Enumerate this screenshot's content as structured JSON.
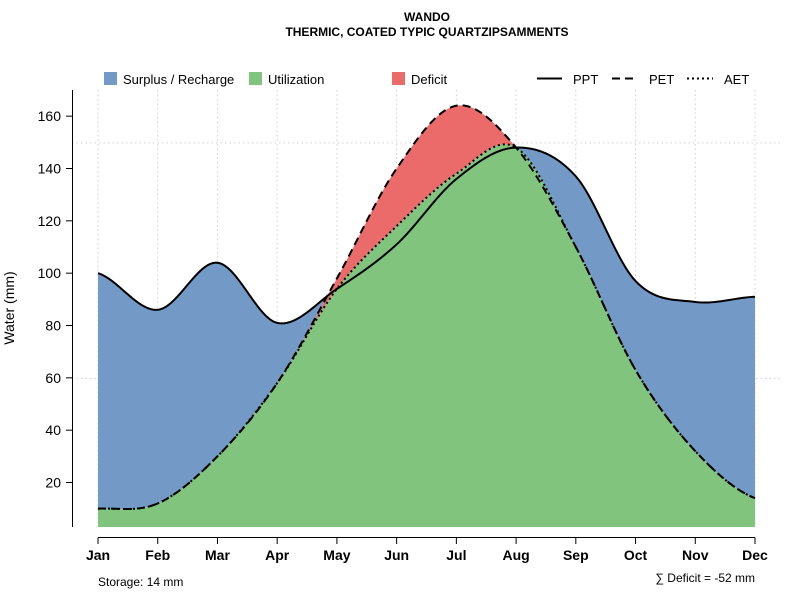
{
  "chart_data": {
    "type": "area",
    "title": "WANDO",
    "subtitle": "THERMIC, COATED TYPIC QUARTZIPSAMMENTS",
    "xlabel": "",
    "ylabel": "Water (mm)",
    "ylim": [
      3,
      170
    ],
    "y_ticks": [
      20,
      40,
      60,
      80,
      100,
      120,
      140,
      160
    ],
    "categories": [
      "Jan",
      "Feb",
      "Mar",
      "Apr",
      "May",
      "Jun",
      "Jul",
      "Aug",
      "Sep",
      "Oct",
      "Nov",
      "Dec"
    ],
    "series": [
      {
        "name": "PPT",
        "style": "solid",
        "values": [
          100,
          86,
          104,
          81,
          94,
          111,
          136,
          148,
          137,
          97,
          89,
          91
        ]
      },
      {
        "name": "PET",
        "style": "dashed",
        "values": [
          10,
          12,
          30,
          58,
          98,
          140,
          164,
          148,
          110,
          63,
          32,
          14
        ]
      },
      {
        "name": "AET",
        "style": "dotted",
        "values": [
          10,
          12,
          30,
          58,
          94,
          118,
          138,
          148,
          110,
          63,
          32,
          14
        ]
      }
    ],
    "areas": [
      {
        "name": "Surplus / Recharge",
        "color": "#7399C6"
      },
      {
        "name": "Utilization",
        "color": "#80C47D"
      },
      {
        "name": "Deficit",
        "color": "#EB6B6B"
      }
    ],
    "legend_position": "top",
    "grid": true
  },
  "footer": {
    "storage": "Storage: 14 mm",
    "deficit": "∑ Deficit = -52 mm"
  }
}
